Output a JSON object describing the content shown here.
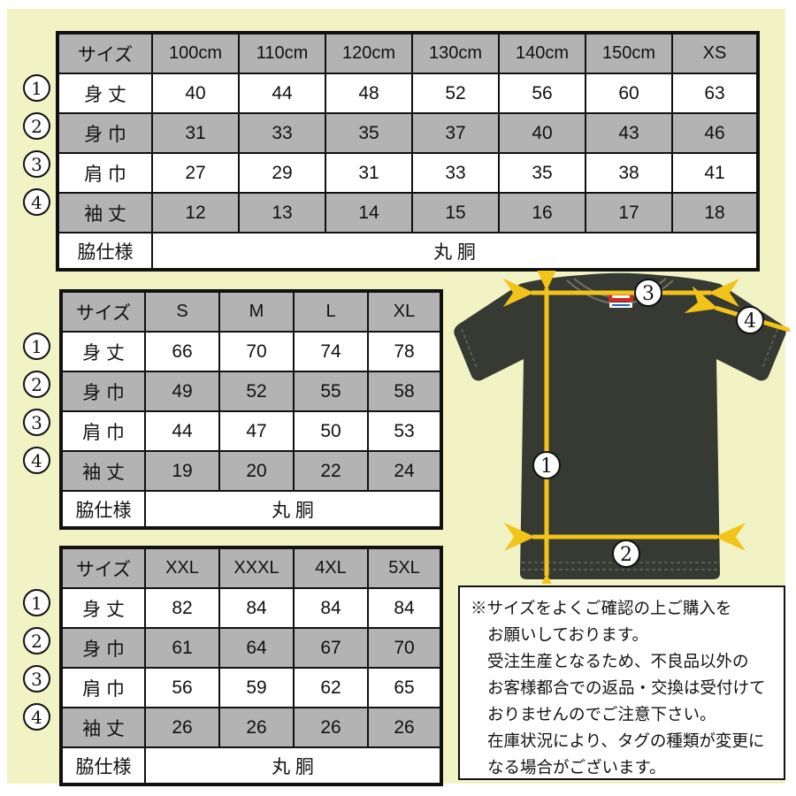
{
  "colors": {
    "background": "#f1f3c5",
    "shade": "#b3b3b3",
    "border": "#111111",
    "arrow": "#f2c41a",
    "shirt": "#363a32",
    "tag_red": "#d42b1e",
    "tag_blue": "#2b5fb8"
  },
  "tables": [
    {
      "name": "kids-sizes",
      "corner": "サイズ",
      "columns": [
        "100cm",
        "110cm",
        "120cm",
        "130cm",
        "140cm",
        "150cm",
        "XS"
      ],
      "rows": [
        {
          "num": "1",
          "label": "身 丈",
          "values": [
            "40",
            "44",
            "48",
            "52",
            "56",
            "60",
            "63"
          ]
        },
        {
          "num": "2",
          "label": "身 巾",
          "values": [
            "31",
            "33",
            "35",
            "37",
            "40",
            "43",
            "46"
          ]
        },
        {
          "num": "3",
          "label": "肩 巾",
          "values": [
            "27",
            "29",
            "31",
            "33",
            "35",
            "38",
            "41"
          ]
        },
        {
          "num": "4",
          "label": "袖 丈",
          "values": [
            "12",
            "13",
            "14",
            "15",
            "16",
            "17",
            "18"
          ]
        }
      ],
      "footer": {
        "label": "脇仕様",
        "value": "丸 胴"
      }
    },
    {
      "name": "adult-sizes",
      "corner": "サイズ",
      "columns": [
        "S",
        "M",
        "L",
        "XL"
      ],
      "rows": [
        {
          "num": "1",
          "label": "身 丈",
          "values": [
            "66",
            "70",
            "74",
            "78"
          ]
        },
        {
          "num": "2",
          "label": "身 巾",
          "values": [
            "49",
            "52",
            "55",
            "58"
          ]
        },
        {
          "num": "3",
          "label": "肩 巾",
          "values": [
            "44",
            "47",
            "50",
            "53"
          ]
        },
        {
          "num": "4",
          "label": "袖 丈",
          "values": [
            "19",
            "20",
            "22",
            "24"
          ]
        }
      ],
      "footer": {
        "label": "脇仕様",
        "value": "丸 胴"
      }
    },
    {
      "name": "big-sizes",
      "corner": "サイズ",
      "columns": [
        "XXL",
        "XXXL",
        "4XL",
        "5XL"
      ],
      "rows": [
        {
          "num": "1",
          "label": "身 丈",
          "values": [
            "82",
            "84",
            "84",
            "84"
          ]
        },
        {
          "num": "2",
          "label": "身 巾",
          "values": [
            "61",
            "64",
            "67",
            "70"
          ]
        },
        {
          "num": "3",
          "label": "肩 巾",
          "values": [
            "56",
            "59",
            "62",
            "65"
          ]
        },
        {
          "num": "4",
          "label": "袖 丈",
          "values": [
            "26",
            "26",
            "26",
            "26"
          ]
        }
      ],
      "footer": {
        "label": "脇仕様",
        "value": "丸 胴"
      }
    }
  ],
  "diagram": {
    "labels": [
      "1",
      "2",
      "3",
      "4"
    ]
  },
  "note": {
    "lines": [
      "※サイズをよくご確認の上ご購入を",
      "お願いしております。",
      "受注生産となるため、不良品以外の",
      "お客様都合での返品・交換は受付けて",
      "おりませんのでご注意下さい。",
      "在庫状況により、タグの種類が変更に",
      "なる場合がございます。"
    ]
  }
}
